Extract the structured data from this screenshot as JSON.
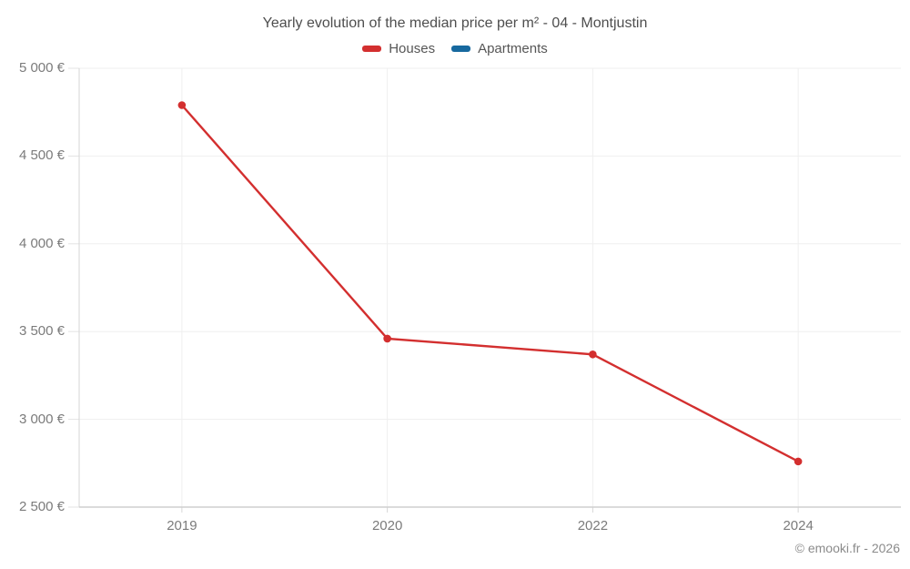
{
  "title": "Yearly evolution of the median price per m² - 04 - Montjustin",
  "footer": "© emooki.fr - 2026",
  "legend": [
    {
      "label": "Houses",
      "color": "#d32f2f"
    },
    {
      "label": "Apartments",
      "color": "#17699f"
    }
  ],
  "colors": {
    "houses": "#d32f2f",
    "apartments": "#17699f",
    "gridline": "#efefef",
    "axis_line": "#d6d6d6",
    "bottom_axis_line": "#cfcfcf",
    "tick_mark": "#e3e3e3",
    "title_text": "#4e4e4e",
    "axis_text": "#7b7b7b",
    "footer_text": "#8b8b8b"
  },
  "chart_data": {
    "type": "line",
    "title": "Yearly evolution of the median price per m² - 04 - Montjustin",
    "categories": [
      "2019",
      "2020",
      "2022",
      "2024"
    ],
    "series": [
      {
        "name": "Houses",
        "color": "#d32f2f",
        "values": [
          4790,
          3460,
          3370,
          2760
        ]
      },
      {
        "name": "Apartments",
        "color": "#17699f",
        "values": []
      }
    ],
    "xlabel": "",
    "ylabel": "",
    "ylim": [
      2500,
      5000
    ],
    "ytick_step": 500,
    "ytick_labels": [
      "2 500 €",
      "3 000 €",
      "3 500 €",
      "4 000 €",
      "4 500 €",
      "5 000 €"
    ],
    "grid": true,
    "legend_position": "top",
    "annotations": [
      "© emooki.fr - 2026"
    ]
  }
}
